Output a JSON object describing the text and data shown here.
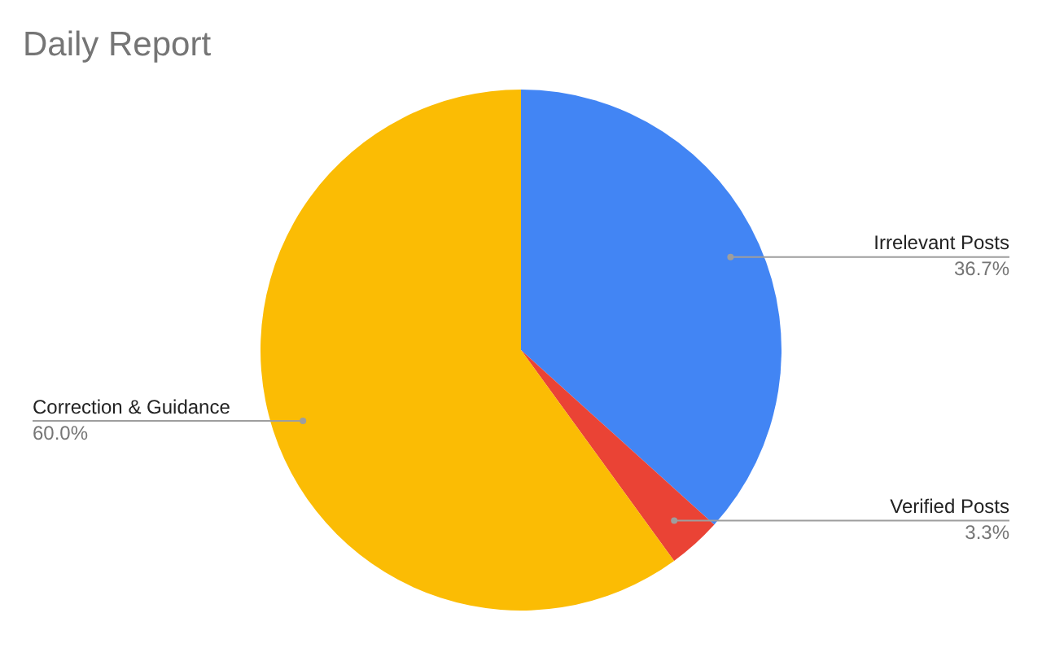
{
  "chart_data": {
    "type": "pie",
    "title": "Daily Report",
    "categories": [
      "Irrelevant Posts",
      "Verified Posts",
      "Correction & Guidance"
    ],
    "values": [
      36.7,
      3.3,
      60.0
    ],
    "colors": [
      "#4285f4",
      "#ea4335",
      "#fbbc04"
    ],
    "value_labels": [
      "36.7%",
      "3.3%",
      "60.0%"
    ],
    "legend": false
  }
}
